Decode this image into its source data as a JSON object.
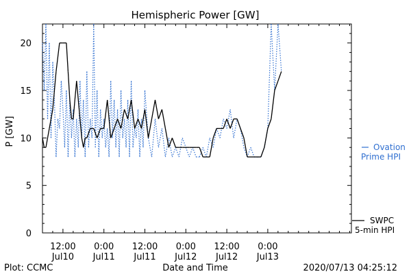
{
  "chart_data": {
    "type": "line",
    "title": "Hemispheric Power [GW]",
    "xlabel": "Date and Time",
    "ylabel": "P [GW]",
    "footer_left": "Plot: CCMC",
    "footer_right": "2020/07/13 04:25:12",
    "ylim": [
      0,
      22
    ],
    "yticks": [
      0,
      5,
      10,
      15,
      20
    ],
    "xlim_hours": [
      0,
      90.5
    ],
    "xticks": [
      {
        "hour": 6,
        "line1": "12:00",
        "line2": "Jul10"
      },
      {
        "hour": 18,
        "line1": "0:00",
        "line2": "Jul11"
      },
      {
        "hour": 30,
        "line1": "12:00",
        "line2": "Jul11"
      },
      {
        "hour": 42,
        "line1": "0:00",
        "line2": "Jul12"
      },
      {
        "hour": 54,
        "line1": "12:00",
        "line2": "Jul12"
      },
      {
        "hour": 66,
        "line1": "0:00",
        "line2": "Jul13"
      }
    ],
    "legend": {
      "ovation": {
        "line1": "Ovation",
        "line2": "Prime HPI",
        "color": "#2f6fd0"
      },
      "swpc": {
        "line1": "SWPC",
        "line2": "5-min HPI",
        "color": "#000000"
      }
    },
    "grid": false,
    "series": [
      {
        "name": "SWPC 5-min HPI",
        "color": "#000000",
        "style": "solid",
        "x": [
          0,
          0.5,
          1,
          1.5,
          2,
          3,
          4,
          5,
          6,
          7,
          7.5,
          8,
          8.5,
          9,
          9.5,
          10,
          11,
          11.5,
          12,
          12.5,
          13,
          14,
          15,
          16,
          17,
          18,
          19,
          20,
          21,
          22,
          23,
          24,
          25,
          26,
          27,
          28,
          29,
          30,
          31,
          32,
          33,
          34,
          35,
          36,
          37,
          38,
          39,
          40,
          41,
          42,
          43,
          44,
          45,
          46,
          47,
          48,
          49,
          50,
          51,
          52,
          53,
          54,
          55,
          56,
          57,
          58,
          59,
          60,
          61,
          62,
          63,
          64,
          65,
          66,
          67,
          68,
          69,
          70
        ],
        "y": [
          10,
          9,
          9,
          10,
          11,
          13,
          17,
          20,
          20,
          20,
          17,
          14,
          12,
          12,
          14,
          16,
          12,
          10,
          9,
          10,
          10,
          11,
          11,
          10,
          11,
          11,
          14,
          10,
          11,
          12,
          11,
          13,
          12,
          14,
          11,
          12,
          11,
          13,
          10,
          12,
          14,
          12,
          13,
          11,
          9,
          10,
          9,
          9,
          9,
          9,
          9,
          9,
          9,
          9,
          8,
          8,
          8,
          10,
          11,
          11,
          11,
          12,
          11,
          12,
          12,
          11,
          10,
          8,
          8,
          8,
          8,
          8,
          9,
          11,
          12,
          15,
          16,
          17
        ]
      },
      {
        "name": "Ovation Prime HPI",
        "color": "#2f6fd0",
        "style": "dotted",
        "x": [
          0,
          0.5,
          1,
          1.5,
          2,
          2.5,
          3,
          3.5,
          4,
          4.5,
          5,
          5.5,
          6,
          6.5,
          7,
          7.5,
          8,
          8.5,
          9,
          9.5,
          10,
          10.5,
          11,
          11.5,
          12,
          12.5,
          13,
          13.5,
          14,
          14.5,
          15,
          15.5,
          16,
          16.5,
          17,
          17.5,
          18,
          18.5,
          19,
          19.5,
          20,
          20.5,
          21,
          21.5,
          22,
          22.5,
          23,
          23.5,
          24,
          24.5,
          25,
          25.5,
          26,
          26.5,
          27,
          27.5,
          28,
          28.5,
          29,
          29.5,
          30,
          31,
          32,
          33,
          34,
          35,
          36,
          37,
          38,
          39,
          40,
          41,
          42,
          43,
          44,
          45,
          46,
          47,
          48,
          49,
          50,
          51,
          52,
          53,
          54,
          55,
          56,
          57,
          58,
          59,
          60,
          61,
          62,
          63,
          64,
          65,
          66,
          67,
          68,
          69,
          70
        ],
        "y": [
          20,
          15,
          22,
          12,
          20,
          10,
          18,
          14,
          8,
          12,
          11,
          16,
          13,
          9,
          15,
          8,
          14,
          10,
          13,
          8,
          12,
          9,
          16,
          10,
          14,
          8,
          17,
          9,
          12,
          10,
          22,
          9,
          15,
          8,
          13,
          10,
          12,
          9,
          11,
          8,
          16,
          10,
          14,
          9,
          13,
          8,
          15,
          10,
          12,
          9,
          14,
          8,
          16,
          9,
          11,
          10,
          13,
          8,
          12,
          9,
          15,
          10,
          8,
          12,
          9,
          11,
          8,
          10,
          8,
          9,
          8,
          10,
          9,
          8,
          9,
          8,
          8,
          9,
          8,
          10,
          9,
          11,
          10,
          12,
          11,
          13,
          10,
          12,
          11,
          9,
          8,
          9,
          8,
          8,
          8,
          9,
          11,
          22,
          15,
          22,
          17
        ]
      }
    ]
  }
}
